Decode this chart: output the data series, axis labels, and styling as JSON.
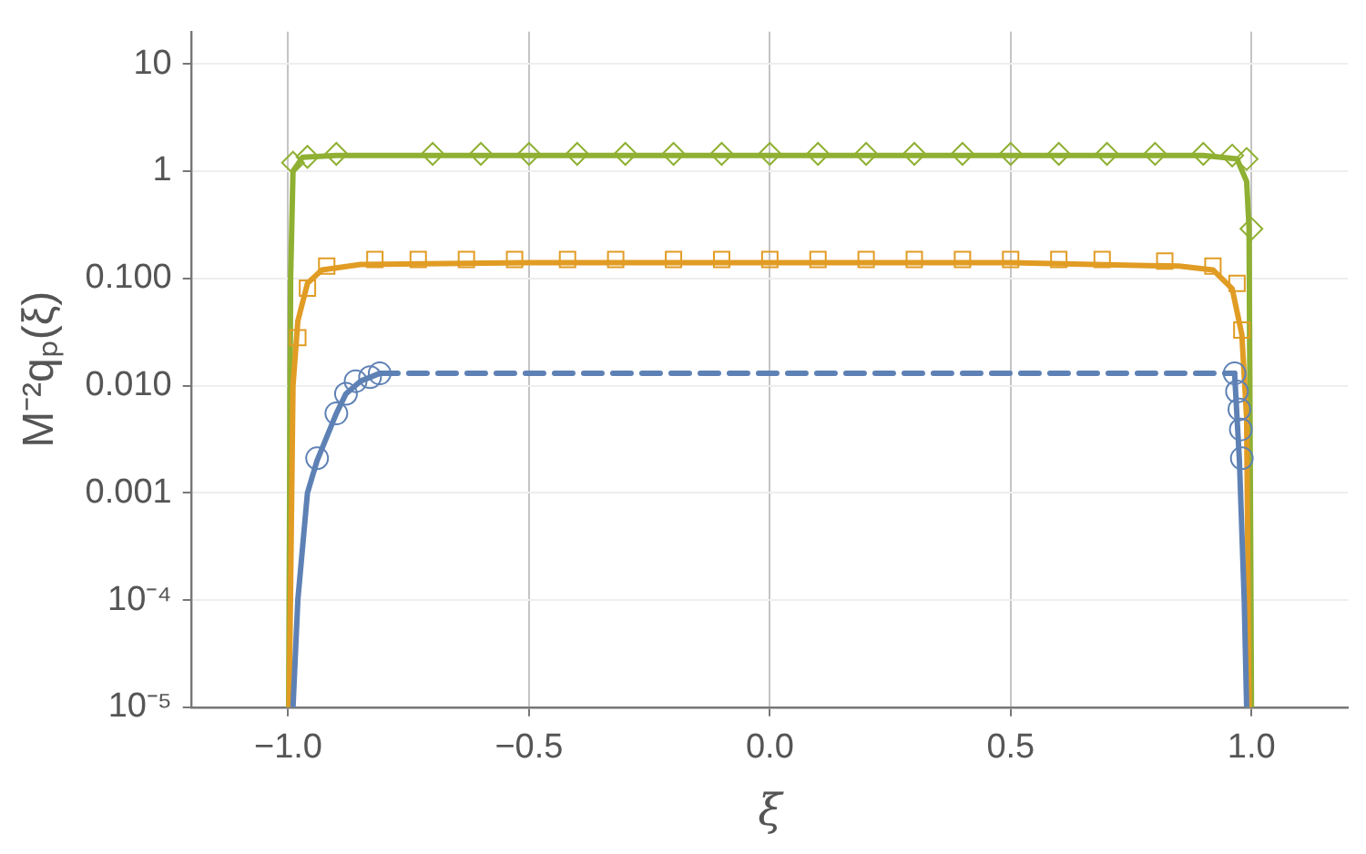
{
  "chart_data": {
    "type": "line",
    "xlabel": "ξ",
    "ylabel": "M⁻²qₚ(ξ)",
    "log": "y",
    "grid": true,
    "legend": false,
    "xlim": [
      -1.2,
      1.2
    ],
    "xticks": [
      {
        "value": -1,
        "label": "−1.0"
      },
      {
        "value": -0.5,
        "label": "−0.5"
      },
      {
        "value": 0,
        "label": "0.0"
      },
      {
        "value": 0.5,
        "label": "0.5"
      },
      {
        "value": 1,
        "label": "1.0"
      }
    ],
    "ylim": [
      1e-05,
      20
    ],
    "yticks": [
      {
        "value": 10,
        "label": "10"
      },
      {
        "value": 1,
        "label": "1"
      },
      {
        "value": 0.1,
        "label": "0.100"
      },
      {
        "value": 0.01,
        "label": "0.010"
      },
      {
        "value": 0.001,
        "label": "0.001"
      },
      {
        "value": 0.0001,
        "label": "10⁻⁴"
      },
      {
        "value": 1e-05,
        "label": "10⁻⁵"
      }
    ],
    "series": [
      {
        "type": "line",
        "color": "#5e81b5",
        "line_style": "solid",
        "marker": "none",
        "x": [
          -0.99,
          -0.98,
          -0.96,
          -0.94,
          -0.9,
          -0.88,
          -0.85,
          -0.81
        ],
        "values": [
          1e-05,
          0.0001,
          0.001,
          0.002,
          0.0055,
          0.0084,
          0.011,
          0.013
        ]
      },
      {
        "type": "line",
        "color": "#5e81b5",
        "line_style": "dashed",
        "marker": "none",
        "x": [
          -0.81,
          0.965
        ],
        "values": [
          0.013,
          0.013
        ]
      },
      {
        "type": "line",
        "color": "#5e81b5",
        "line_style": "solid",
        "marker": "none",
        "x": [
          0.965,
          0.975,
          0.985,
          0.99
        ],
        "values": [
          0.013,
          0.002,
          0.0001,
          1e-05
        ]
      },
      {
        "type": "line",
        "color": "#e19c24",
        "line_style": "solid",
        "marker": "none",
        "x": [
          -0.998,
          -0.99,
          -0.98,
          -0.96,
          -0.93,
          -0.85,
          -0.5,
          0.5,
          0.85,
          0.92,
          0.96,
          0.98,
          0.99,
          0.995
        ],
        "values": [
          1e-05,
          0.01,
          0.04,
          0.09,
          0.12,
          0.135,
          0.14,
          0.14,
          0.13,
          0.12,
          0.08,
          0.03,
          0.005,
          1e-05
        ]
      },
      {
        "type": "line",
        "color": "#8fb032",
        "line_style": "solid",
        "marker": "none",
        "x": [
          -0.999,
          -0.995,
          -0.99,
          -0.97,
          -0.9,
          0.9,
          0.97,
          0.99,
          0.995,
          1.0
        ],
        "values": [
          1e-05,
          0.1,
          1.0,
          1.35,
          1.4,
          1.4,
          1.3,
          0.8,
          0.3,
          1e-05
        ]
      },
      {
        "type": "scatter",
        "color": "#5e81b5",
        "marker": "circle",
        "x": [
          -0.94,
          -0.9,
          -0.88,
          -0.86,
          -0.83,
          -0.81,
          0.965,
          0.97,
          0.975,
          0.978,
          0.98
        ],
        "values": [
          0.0021,
          0.0055,
          0.0084,
          0.011,
          0.012,
          0.013,
          0.013,
          0.0088,
          0.006,
          0.0039,
          0.0021
        ]
      },
      {
        "type": "scatter",
        "color": "#e19c24",
        "marker": "square",
        "x": [
          -0.98,
          -0.96,
          -0.92,
          -0.82,
          -0.73,
          -0.63,
          -0.53,
          -0.42,
          -0.32,
          -0.2,
          -0.1,
          0.0,
          0.1,
          0.2,
          0.3,
          0.4,
          0.5,
          0.6,
          0.69,
          0.82,
          0.92,
          0.97,
          0.98
        ],
        "values": [
          0.028,
          0.081,
          0.13,
          0.15,
          0.15,
          0.15,
          0.15,
          0.15,
          0.15,
          0.15,
          0.15,
          0.15,
          0.15,
          0.15,
          0.15,
          0.15,
          0.15,
          0.15,
          0.15,
          0.145,
          0.13,
          0.09,
          0.033
        ]
      },
      {
        "type": "scatter",
        "color": "#8fb032",
        "marker": "diamond",
        "x": [
          -0.99,
          -0.96,
          -0.9,
          -0.7,
          -0.6,
          -0.5,
          -0.4,
          -0.3,
          -0.2,
          -0.1,
          0.0,
          0.1,
          0.2,
          0.3,
          0.4,
          0.5,
          0.6,
          0.7,
          0.8,
          0.9,
          0.96,
          0.99,
          1.0
        ],
        "values": [
          1.2,
          1.36,
          1.45,
          1.45,
          1.45,
          1.45,
          1.45,
          1.45,
          1.45,
          1.45,
          1.45,
          1.45,
          1.45,
          1.45,
          1.45,
          1.45,
          1.45,
          1.45,
          1.45,
          1.45,
          1.4,
          1.3,
          0.29
        ]
      }
    ]
  }
}
